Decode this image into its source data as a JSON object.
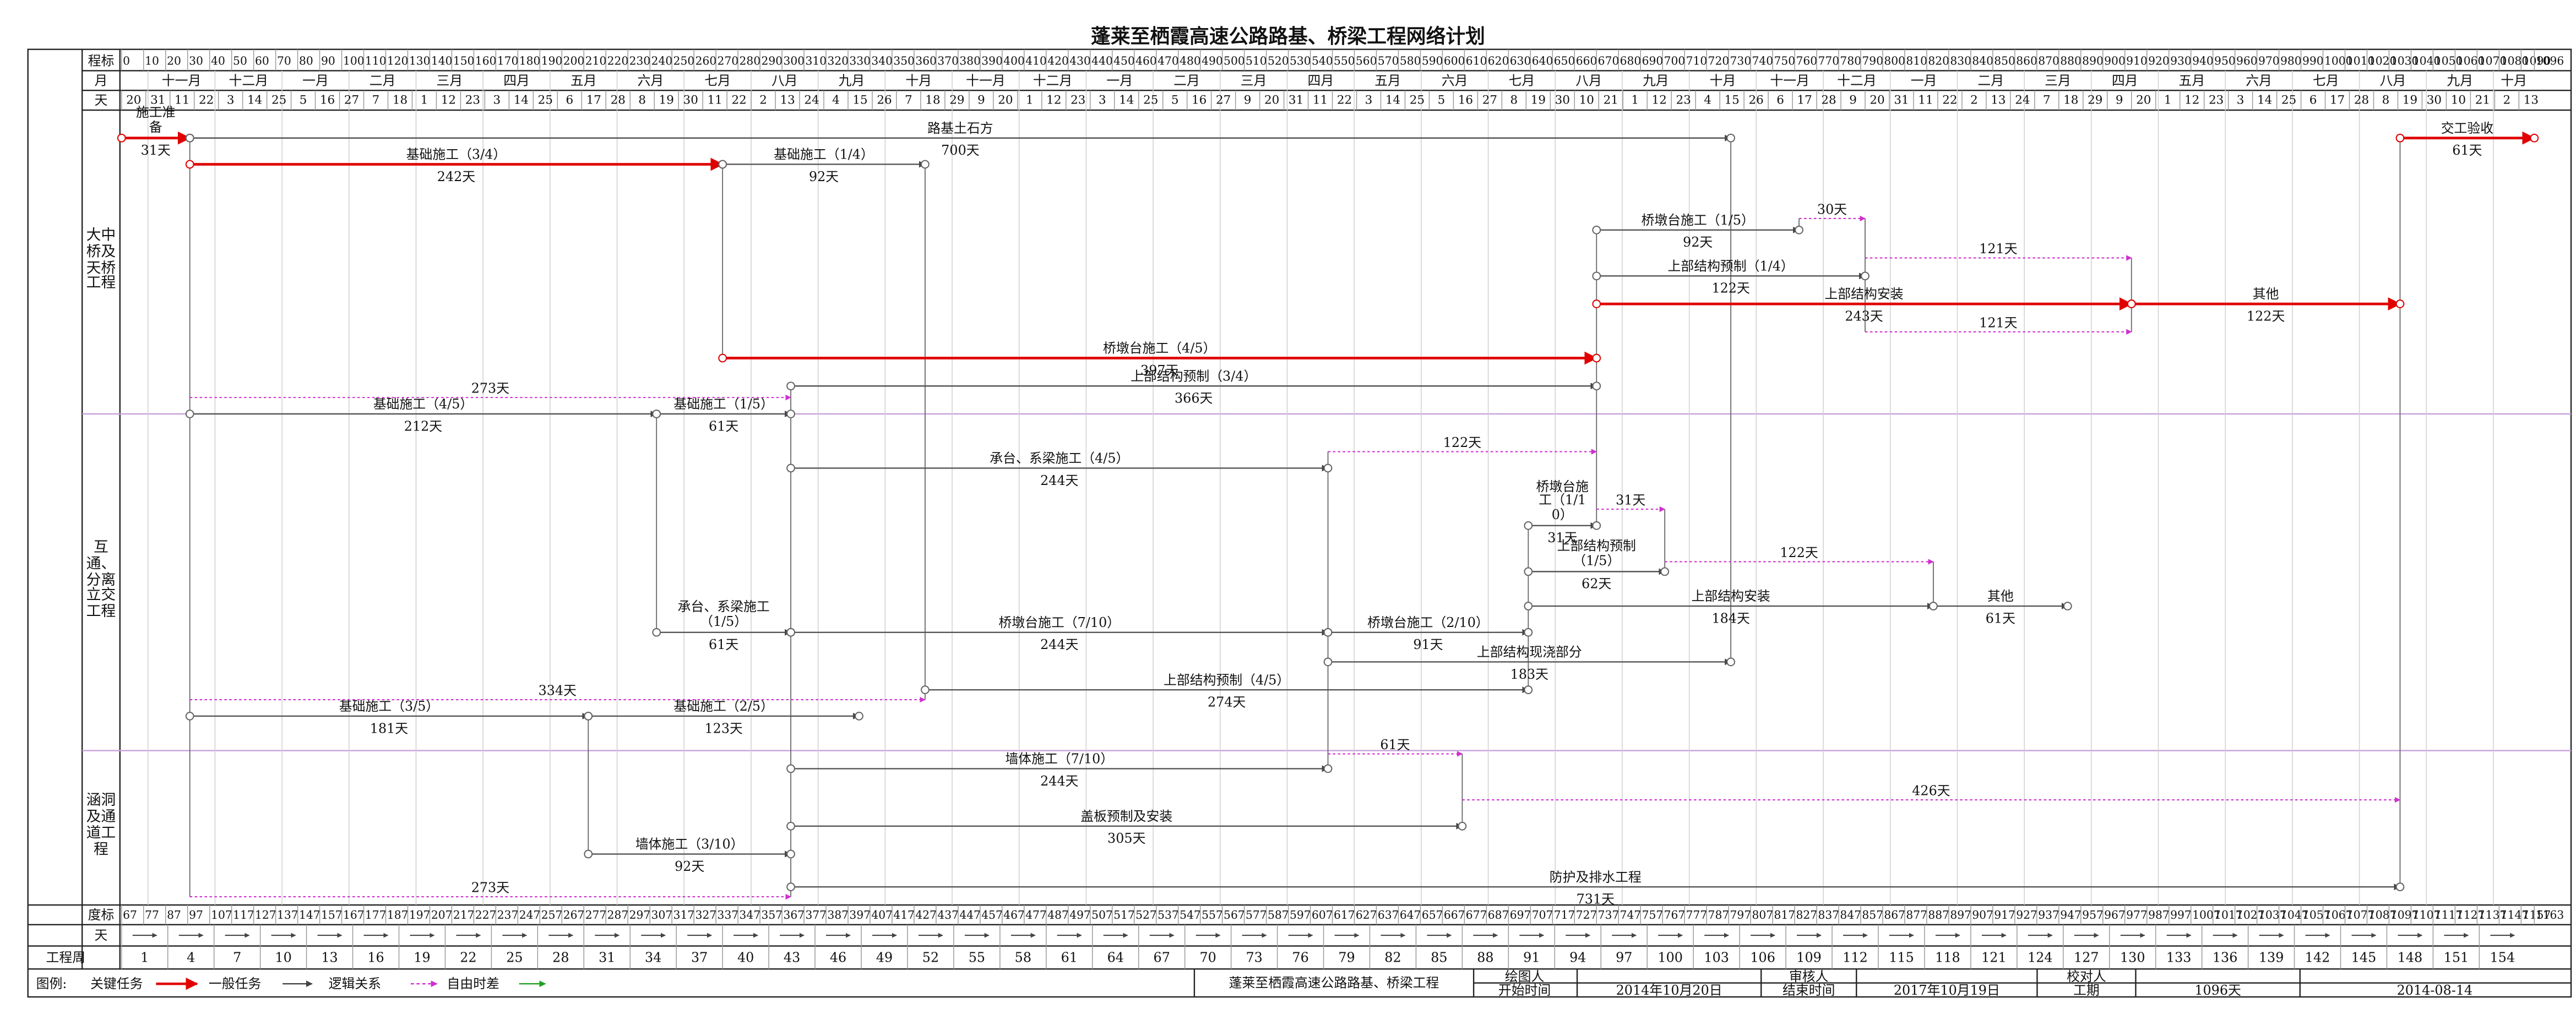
{
  "title": "蓬莱至栖霞高速公路路基、桥梁工程网络计划",
  "header": {
    "scale_label": "程标",
    "month_label": "月",
    "day_label": "天",
    "scale_ticks": [
      0,
      10,
      20,
      30,
      40,
      50,
      60,
      70,
      80,
      90,
      100,
      110,
      120,
      130,
      140,
      150,
      160,
      170,
      180,
      190,
      200,
      210,
      220,
      230,
      240,
      250,
      260,
      270,
      280,
      290,
      300,
      310,
      320,
      330,
      340,
      350,
      360,
      370,
      380,
      390,
      400,
      410,
      420,
      430,
      440,
      450,
      460,
      470,
      480,
      490,
      500,
      510,
      520,
      530,
      540,
      550,
      560,
      570,
      580,
      590,
      600,
      610,
      620,
      630,
      640,
      650,
      660,
      670,
      680,
      690,
      700,
      710,
      720,
      730,
      740,
      750,
      760,
      770,
      780,
      790,
      800,
      810,
      820,
      830,
      840,
      850,
      860,
      870,
      880,
      890,
      900,
      910,
      920,
      930,
      940,
      950,
      960,
      970,
      980,
      990,
      1000,
      1010,
      1020,
      1030,
      1040,
      1050,
      1060,
      1070,
      1080,
      1090,
      1096
    ],
    "months": [
      "十一月",
      "十二月",
      "一月",
      "二月",
      "三月",
      "四月",
      "五月",
      "六月",
      "七月",
      "八月",
      "九月",
      "十月",
      "十一月",
      "十二月",
      "一月",
      "二月",
      "三月",
      "四月",
      "五月",
      "六月",
      "七月",
      "八月",
      "九月",
      "十月",
      "十一月",
      "十二月",
      "一月",
      "二月",
      "三月",
      "四月",
      "五月",
      "六月",
      "七月",
      "八月",
      "九月",
      "十月"
    ],
    "days": [
      20,
      31,
      11,
      22,
      3,
      14,
      25,
      5,
      16,
      27,
      7,
      18,
      1,
      12,
      23,
      3,
      14,
      25,
      6,
      17,
      28,
      8,
      19,
      30,
      11,
      22,
      2,
      13,
      24,
      4,
      15,
      26,
      7,
      18,
      29,
      9,
      20,
      1,
      12,
      23,
      3,
      14,
      25,
      5,
      16,
      27,
      9,
      20,
      31,
      11,
      22,
      3,
      14,
      25,
      5,
      16,
      27,
      8,
      19,
      30,
      10,
      21,
      1,
      12,
      23,
      4,
      15,
      26,
      6,
      17,
      28,
      9,
      20,
      31,
      11,
      22,
      2,
      13,
      24,
      7,
      18,
      29,
      9,
      20,
      1,
      12,
      23,
      3,
      14,
      25,
      6,
      17,
      28,
      8,
      19,
      30,
      10,
      21,
      2,
      13
    ]
  },
  "footer_scale": {
    "scale_label": "度标",
    "day_label": "天",
    "week_label": "工程周",
    "scale_ticks": [
      67,
      77,
      87,
      97,
      107,
      117,
      127,
      137,
      147,
      157,
      167,
      177,
      187,
      197,
      207,
      217,
      227,
      237,
      247,
      257,
      267,
      277,
      287,
      297,
      307,
      317,
      327,
      337,
      347,
      357,
      367,
      377,
      387,
      397,
      407,
      417,
      427,
      437,
      447,
      457,
      467,
      477,
      487,
      497,
      507,
      517,
      527,
      537,
      547,
      557,
      567,
      577,
      587,
      597,
      607,
      617,
      627,
      637,
      647,
      657,
      667,
      677,
      687,
      697,
      707,
      717,
      727,
      737,
      747,
      757,
      767,
      777,
      787,
      797,
      807,
      817,
      827,
      837,
      847,
      857,
      867,
      877,
      887,
      897,
      907,
      917,
      927,
      937,
      947,
      957,
      967,
      977,
      987,
      997,
      1007,
      1017,
      1027,
      1037,
      1047,
      1057,
      1067,
      1077,
      1087,
      1097,
      1107,
      1117,
      1127,
      1137,
      1147,
      1157,
      1163
    ],
    "weeks": [
      1,
      4,
      7,
      10,
      13,
      16,
      19,
      22,
      25,
      28,
      31,
      34,
      37,
      40,
      43,
      46,
      49,
      52,
      55,
      58,
      61,
      64,
      67,
      70,
      73,
      76,
      79,
      82,
      85,
      88,
      91,
      94,
      97,
      100,
      103,
      106,
      109,
      112,
      115,
      118,
      121,
      124,
      127,
      130,
      133,
      136,
      139,
      142,
      145,
      148,
      151,
      154
    ]
  },
  "sections": [
    "大中桥及天桥工程",
    "互通、分离立交工程",
    "涵洞及通道工程"
  ],
  "activities": [
    {
      "name": "施工准备",
      "start": 0,
      "duration": {
        "value": 31,
        "label": "31天"
      },
      "critical": true
    },
    {
      "name": "路基土石方",
      "start": 31,
      "duration": {
        "value": 700,
        "label": "700天"
      }
    },
    {
      "name": "基础施工（3/4）",
      "start": 31,
      "duration": {
        "value": 242,
        "label": "242天"
      },
      "critical": true
    },
    {
      "name": "基础施工（1/4）",
      "start": 273,
      "duration": {
        "value": 92,
        "label": "92天"
      }
    },
    {
      "name": "桥墩台施工（4/5）",
      "start": 273,
      "duration": {
        "value": 397,
        "label": "397天"
      },
      "critical": true
    },
    {
      "name": "上部结构预制（3/4）",
      "start": 304,
      "duration": {
        "value": 366,
        "label": "366天"
      }
    },
    {
      "name": "桥墩台施工（1/5）",
      "start": 670,
      "duration": {
        "value": 92,
        "label": "92天"
      }
    },
    {
      "name": "上部结构预制（1/4）",
      "start": 670,
      "duration": {
        "value": 122,
        "label": "122天"
      }
    },
    {
      "name": "上部结构安装",
      "start": 670,
      "duration": {
        "value": 243,
        "label": "243天"
      },
      "critical": true
    },
    {
      "name": "其他",
      "start": 913,
      "duration": {
        "value": 122,
        "label": "122天"
      },
      "critical": true
    },
    {
      "name": "交工验收",
      "start": 1035,
      "duration": {
        "value": 61,
        "label": "61天"
      },
      "critical": true
    },
    {
      "name": "基础施工（4/5）",
      "start": 31,
      "duration": {
        "value": 212,
        "label": "212天"
      }
    },
    {
      "name": "基础施工（1/5）",
      "start": 243,
      "duration": {
        "value": 61,
        "label": "61天"
      }
    },
    {
      "name": "承台、系梁施工（4/5）",
      "start": 304,
      "duration": {
        "value": 244,
        "label": "244天"
      }
    },
    {
      "name": "桥墩台施工（1/10）",
      "start": 639,
      "duration": {
        "value": 31,
        "label": "31天"
      }
    },
    {
      "name": "上部结构预制（1/5）",
      "start": 639,
      "duration": {
        "value": 62,
        "label": "62天"
      }
    },
    {
      "name": "上部结构安装",
      "start": 639,
      "duration": {
        "value": 184,
        "label": "184天"
      }
    },
    {
      "name": "其他",
      "start": 823,
      "duration": {
        "value": 61,
        "label": "61天"
      }
    },
    {
      "name": "承台、系梁施工（1/5）",
      "start": 243,
      "duration": {
        "value": 61,
        "label": "61天"
      }
    },
    {
      "name": "桥墩台施工（7/10）",
      "start": 304,
      "duration": {
        "value": 244,
        "label": "244天"
      }
    },
    {
      "name": "桥墩台施工（2/10）",
      "start": 548,
      "duration": {
        "value": 91,
        "label": "91天"
      }
    },
    {
      "name": "上部结构现浇部分",
      "start": 548,
      "duration": {
        "value": 183,
        "label": "183天"
      }
    },
    {
      "name": "上部结构预制（4/5）",
      "start": 365,
      "duration": {
        "value": 274,
        "label": "274天"
      }
    },
    {
      "name": "基础施工（3/5）",
      "start": 31,
      "duration": {
        "value": 181,
        "label": "181天"
      }
    },
    {
      "name": "基础施工（2/5）",
      "start": 212,
      "duration": {
        "value": 123,
        "label": "123天"
      }
    },
    {
      "name": "墙体施工（7/10）",
      "start": 304,
      "duration": {
        "value": 244,
        "label": "244天"
      }
    },
    {
      "name": "盖板预制及安装",
      "start": 304,
      "duration": {
        "value": 305,
        "label": "305天"
      }
    },
    {
      "name": "墙体施工（3/10）",
      "start": 212,
      "duration": {
        "value": 92,
        "label": "92天"
      }
    },
    {
      "name": "防护及排水工程",
      "start": 304,
      "duration": {
        "value": 731,
        "label": "731天"
      }
    }
  ],
  "floats": [
    {
      "start": 762,
      "duration": {
        "value": 30,
        "label": "30天"
      }
    },
    {
      "start": 792,
      "duration": {
        "value": 121,
        "label": "121天"
      }
    },
    {
      "start": 792,
      "duration": {
        "value": 121,
        "label": "121天"
      }
    },
    {
      "start": 31,
      "duration": {
        "value": 273,
        "label": "273天"
      }
    },
    {
      "start": 548,
      "duration": {
        "value": 122,
        "label": "122天"
      }
    },
    {
      "start": 670,
      "duration": {
        "value": 31,
        "label": "31天"
      }
    },
    {
      "start": 701,
      "duration": {
        "value": 122,
        "label": "122天"
      }
    },
    {
      "start": 31,
      "duration": {
        "value": 334,
        "label": "334天"
      }
    },
    {
      "start": 548,
      "duration": {
        "value": 61,
        "label": "61天"
      }
    },
    {
      "start": 609,
      "duration": {
        "value": 426,
        "label": "426天"
      }
    },
    {
      "start": 31,
      "duration": {
        "value": 273,
        "label": "273天"
      }
    }
  ],
  "legend": {
    "title": "图例:",
    "critical": "关键任务",
    "normal": "一般任务",
    "logic": "逻辑关系",
    "float": "自由时差"
  },
  "info": {
    "project": "蓬莱至栖霞高速公路路基、桥梁工程",
    "drawer": "绘图人",
    "start_label": "开始时间",
    "start": "2014年10月20日",
    "reviewer": "审核人",
    "end_label": "结束时间",
    "end": "2017年10月19日",
    "checker": "校对人",
    "period_label": "工期",
    "period": "1096天",
    "date": "2014-08-14"
  }
}
